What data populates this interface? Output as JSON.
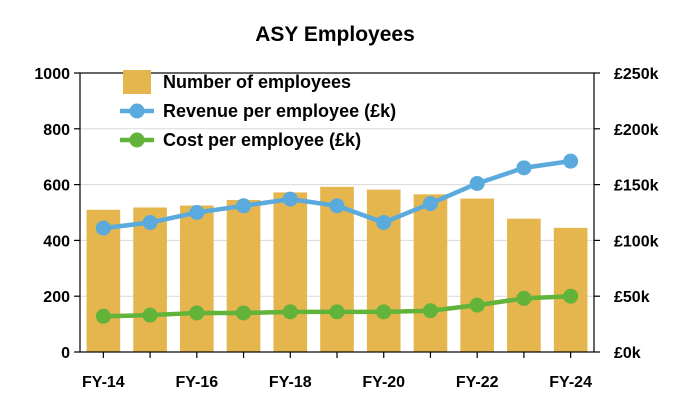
{
  "chart_data": {
    "type": "bar",
    "title": "ASY Employees",
    "categories": [
      "FY-14",
      "FY-15",
      "FY-16",
      "FY-17",
      "FY-18",
      "FY-19",
      "FY-20",
      "FY-21",
      "FY-22",
      "FY-23",
      "FY-24"
    ],
    "x_tick_labels": [
      "FY-14",
      "FY-16",
      "FY-18",
      "FY-20",
      "FY-22",
      "FY-24"
    ],
    "series": [
      {
        "name": "Number of employees",
        "type": "bar",
        "axis": "left",
        "color": "#E5B54E",
        "values": [
          510,
          518,
          525,
          545,
          572,
          592,
          582,
          565,
          550,
          478,
          445
        ]
      },
      {
        "name": "Revenue per employee (£k)",
        "type": "line",
        "axis": "right",
        "color": "#5BAADE",
        "values": [
          111,
          116,
          125,
          131,
          137,
          131,
          116,
          133,
          151,
          165,
          171
        ]
      },
      {
        "name": "Cost per employee (£k)",
        "type": "line",
        "axis": "right",
        "color": "#62B33A",
        "values": [
          32,
          33,
          35,
          35,
          36,
          36,
          36,
          37,
          42,
          48,
          50
        ]
      }
    ],
    "left_axis": {
      "min": 0,
      "max": 1000,
      "ticks": [
        0,
        200,
        400,
        600,
        800,
        1000
      ],
      "tick_labels": [
        "0",
        "200",
        "400",
        "600",
        "800",
        "1000"
      ]
    },
    "right_axis": {
      "min": 0,
      "max": 250,
      "ticks": [
        0,
        50,
        100,
        150,
        200,
        250
      ],
      "tick_labels": [
        "£0k",
        "£50k",
        "£100k",
        "£150k",
        "£200k",
        "£250k"
      ]
    },
    "grid": "horizontal",
    "legend_position": "top-left"
  }
}
